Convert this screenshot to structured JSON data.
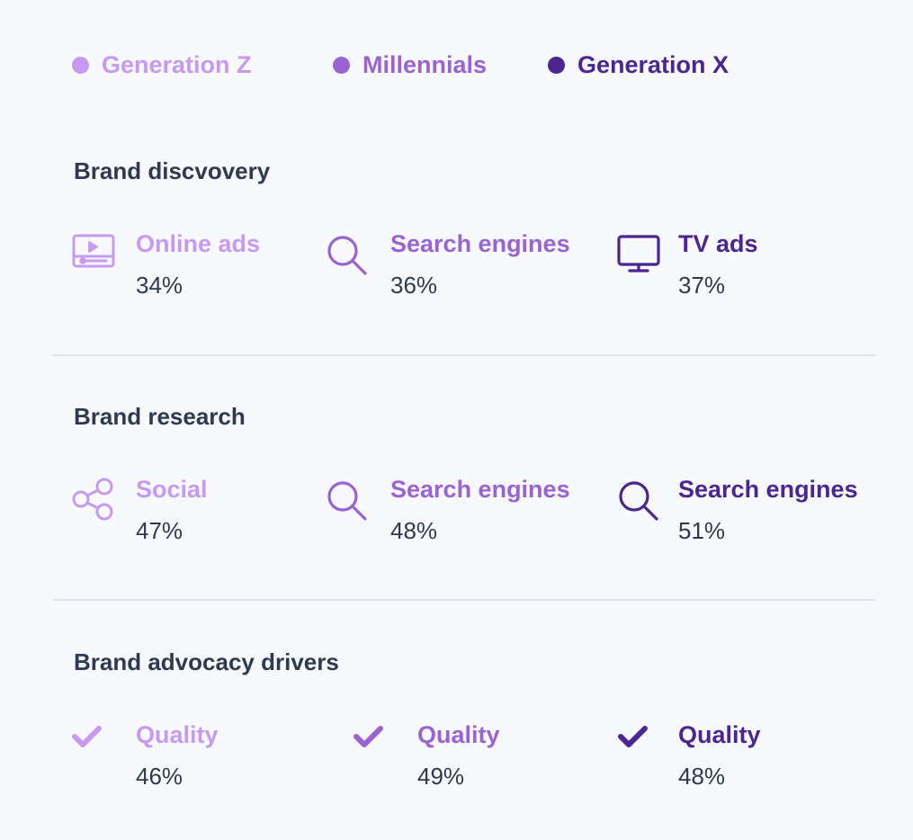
{
  "colors": {
    "gen_z": "#c79af2",
    "millennials": "#9a63d3",
    "gen_x": "#4b2592",
    "text": "#2e3a4f"
  },
  "legend": [
    {
      "label": "Generation Z",
      "color": "#c79af2"
    },
    {
      "label": "Millennials",
      "color": "#9a63d3"
    },
    {
      "label": "Generation X",
      "color": "#4b2592"
    }
  ],
  "sections": [
    {
      "title": "Brand discvovery",
      "items": [
        {
          "label": "Online ads",
          "value": "34%",
          "icon": "video-ad-icon",
          "color": "#c79af2"
        },
        {
          "label": "Search engines",
          "value": "36%",
          "icon": "search-icon",
          "color": "#9a63d3"
        },
        {
          "label": "TV ads",
          "value": "37%",
          "icon": "tv-icon",
          "color": "#4b2592"
        }
      ]
    },
    {
      "title": "Brand research",
      "items": [
        {
          "label": "Social",
          "value": "47%",
          "icon": "share-icon",
          "color": "#c79af2"
        },
        {
          "label": "Search engines",
          "value": "48%",
          "icon": "search-icon",
          "color": "#9a63d3"
        },
        {
          "label": "Search engines",
          "value": "51%",
          "icon": "search-icon",
          "color": "#4b2592"
        }
      ]
    },
    {
      "title": "Brand advocacy drivers",
      "items": [
        {
          "label": "Quality",
          "value": "46%",
          "icon": "check-icon",
          "color": "#c79af2"
        },
        {
          "label": "Quality",
          "value": "49%",
          "icon": "check-icon",
          "color": "#9a63d3"
        },
        {
          "label": "Quality",
          "value": "48%",
          "icon": "check-icon",
          "color": "#4b2592"
        }
      ]
    }
  ]
}
